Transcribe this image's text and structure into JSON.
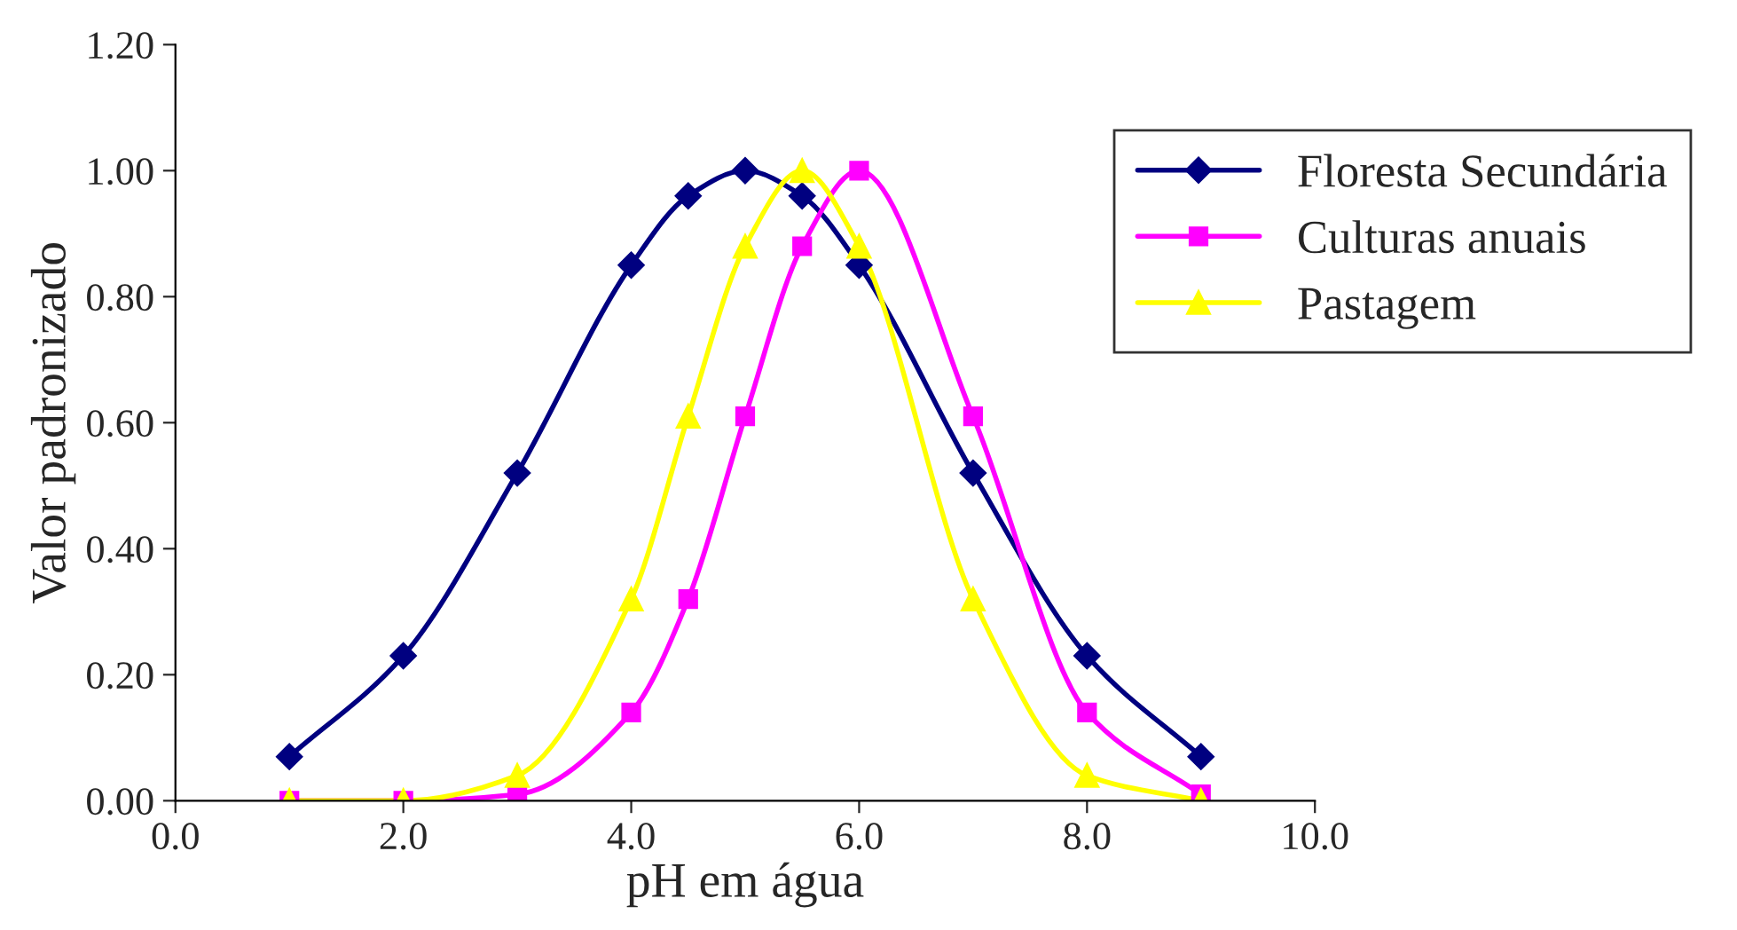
{
  "chart_data": {
    "type": "line",
    "xlabel": "pH em água",
    "ylabel": "Valor padronizado",
    "xlim": [
      0,
      10
    ],
    "xticks": [
      {
        "value": 0,
        "label": "0.0"
      },
      {
        "value": 2,
        "label": "2.0"
      },
      {
        "value": 4,
        "label": "4.0"
      },
      {
        "value": 6,
        "label": "6.0"
      },
      {
        "value": 8,
        "label": "8.0"
      },
      {
        "value": 10,
        "label": "10.0"
      }
    ],
    "ylim": [
      0,
      1.2
    ],
    "yticks": [
      {
        "value": 0,
        "label": "0.00"
      },
      {
        "value": 0.2,
        "label": "0.20"
      },
      {
        "value": 0.4,
        "label": "0.40"
      },
      {
        "value": 0.6,
        "label": "0.60"
      },
      {
        "value": 0.8,
        "label": "0.80"
      },
      {
        "value": 1.0,
        "label": "1.00"
      },
      {
        "value": 1.2,
        "label": "1.20"
      }
    ],
    "grid": false,
    "legend": "right",
    "line_style": "solid",
    "series": [
      {
        "name": "Floresta Secundária",
        "color": "#000080",
        "marker": "diamond",
        "x": [
          1,
          2,
          3,
          4,
          4.5,
          5,
          5.5,
          6,
          7,
          8,
          9
        ],
        "values": [
          0.07,
          0.23,
          0.52,
          0.85,
          0.96,
          1.0,
          0.96,
          0.85,
          0.52,
          0.23,
          0.07
        ]
      },
      {
        "name": "Culturas anuais",
        "color": "#ff00ff",
        "marker": "square",
        "x": [
          1,
          2,
          3,
          4,
          4.5,
          5,
          5.5,
          6,
          7,
          8,
          9
        ],
        "values": [
          0.0,
          0.0,
          0.01,
          0.14,
          0.32,
          0.61,
          0.88,
          1.0,
          0.61,
          0.14,
          0.01
        ]
      },
      {
        "name": "Pastagem",
        "color": "#ffff00",
        "marker": "triangle",
        "x": [
          1,
          2,
          3,
          4,
          4.5,
          5,
          5.5,
          6,
          7,
          8,
          9
        ],
        "values": [
          0.0,
          0.0,
          0.04,
          0.32,
          0.61,
          0.88,
          1.0,
          0.88,
          0.32,
          0.04,
          0.0
        ]
      }
    ]
  }
}
